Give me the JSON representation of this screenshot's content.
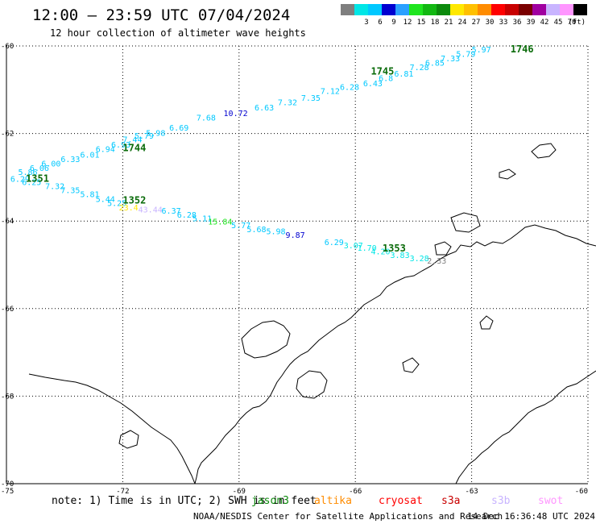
{
  "header": {
    "title": "12:00 — 23:59 UTC 07/04/2024",
    "subtitle": "12 hour collection of altimeter wave heights"
  },
  "legend": {
    "unit": "(ft)",
    "bins": [
      {
        "label": "",
        "color": "#7f7f7f"
      },
      {
        "label": "3",
        "color": "#00e6e6"
      },
      {
        "label": "6",
        "color": "#00c8ff"
      },
      {
        "label": "9",
        "color": "#0000d0"
      },
      {
        "label": "12",
        "color": "#2aa0ff"
      },
      {
        "label": "15",
        "color": "#1fe51f"
      },
      {
        "label": "18",
        "color": "#12b812"
      },
      {
        "label": "21",
        "color": "#0c8a0c"
      },
      {
        "label": "24",
        "color": "#ffe800"
      },
      {
        "label": "27",
        "color": "#ffc000"
      },
      {
        "label": "30",
        "color": "#ff8c00"
      },
      {
        "label": "33",
        "color": "#ff0000"
      },
      {
        "label": "36",
        "color": "#c80000"
      },
      {
        "label": "39",
        "color": "#7a0000"
      },
      {
        "label": "42",
        "color": "#a000a0"
      },
      {
        "label": "45",
        "color": "#c8b4ff"
      },
      {
        "label": "70",
        "color": "#ff96ff"
      },
      {
        "label": "",
        "color": "#000000"
      }
    ]
  },
  "map": {
    "lat_labels": [
      "-60",
      "-62",
      "-64",
      "-66",
      "-68",
      "-70"
    ],
    "lon_labels": [
      "-75",
      "-72",
      "-69",
      "-66",
      "-63",
      "-60"
    ],
    "lon_range": [
      -75,
      -60
    ],
    "lat_range": [
      -60,
      -70
    ],
    "passes": [
      {
        "label": "1746",
        "lon": -62.0,
        "lat": -60.15
      },
      {
        "label": "1745",
        "lon": -65.6,
        "lat": -60.65
      },
      {
        "label": "1744",
        "lon": -72.0,
        "lat": -62.4
      },
      {
        "label": "1351",
        "lon": -74.5,
        "lat": -63.1
      },
      {
        "label": "1352",
        "lon": -72.0,
        "lat": -63.6
      },
      {
        "label": "1353",
        "lon": -65.3,
        "lat": -64.7
      }
    ],
    "observations": [
      {
        "text": "5.97",
        "lon": -63.0,
        "lat": -60.15,
        "color": "#00c8ff"
      },
      {
        "text": "5.79",
        "lon": -63.4,
        "lat": -60.25,
        "color": "#00c8ff"
      },
      {
        "text": "7.33",
        "lon": -63.8,
        "lat": -60.35,
        "color": "#00c8ff"
      },
      {
        "text": "6.85",
        "lon": -64.2,
        "lat": -60.45,
        "color": "#00c8ff"
      },
      {
        "text": "7.28",
        "lon": -64.6,
        "lat": -60.55,
        "color": "#00c8ff"
      },
      {
        "text": "6.81",
        "lon": -65.0,
        "lat": -60.7,
        "color": "#00c8ff"
      },
      {
        "text": "6.8",
        "lon": -65.4,
        "lat": -60.8,
        "color": "#00c8ff"
      },
      {
        "text": "6.43",
        "lon": -65.8,
        "lat": -60.92,
        "color": "#00c8ff"
      },
      {
        "text": "6.28",
        "lon": -66.4,
        "lat": -61.0,
        "color": "#00c8ff"
      },
      {
        "text": "7.12",
        "lon": -66.9,
        "lat": -61.1,
        "color": "#00c8ff"
      },
      {
        "text": "7.35",
        "lon": -67.4,
        "lat": -61.25,
        "color": "#00c8ff"
      },
      {
        "text": "7.32",
        "lon": -68.0,
        "lat": -61.35,
        "color": "#00c8ff"
      },
      {
        "text": "6.63",
        "lon": -68.6,
        "lat": -61.47,
        "color": "#00c8ff"
      },
      {
        "text": "10.72",
        "lon": -69.4,
        "lat": -61.6,
        "color": "#0000d0"
      },
      {
        "text": "7.68",
        "lon": -70.1,
        "lat": -61.7,
        "color": "#00c8ff"
      },
      {
        "text": "6.69",
        "lon": -70.8,
        "lat": -61.93,
        "color": "#00c8ff"
      },
      {
        "text": "5.98",
        "lon": -71.4,
        "lat": -62.05,
        "color": "#00c8ff"
      },
      {
        "text": "5.79",
        "lon": -71.7,
        "lat": -62.12,
        "color": "#00c8ff"
      },
      {
        "text": "7.44",
        "lon": -72.0,
        "lat": -62.2,
        "color": "#00c8ff"
      },
      {
        "text": "6.93",
        "lon": -72.3,
        "lat": -62.32,
        "color": "#00c8ff"
      },
      {
        "text": "6.94",
        "lon": -72.7,
        "lat": -62.42,
        "color": "#00c8ff"
      },
      {
        "text": "6.01",
        "lon": -73.1,
        "lat": -62.55,
        "color": "#00c8ff"
      },
      {
        "text": "6.33",
        "lon": -73.6,
        "lat": -62.65,
        "color": "#00c8ff"
      },
      {
        "text": "6.00",
        "lon": -74.1,
        "lat": -62.75,
        "color": "#00c8ff"
      },
      {
        "text": "6.06",
        "lon": -74.4,
        "lat": -62.85,
        "color": "#00c8ff"
      },
      {
        "text": "5.86",
        "lon": -74.7,
        "lat": -62.95,
        "color": "#00c8ff"
      },
      {
        "text": "6.29",
        "lon": -74.9,
        "lat": -63.1,
        "color": "#00c8ff"
      },
      {
        "text": "6.25",
        "lon": -74.6,
        "lat": -63.18,
        "color": "#00c8ff"
      },
      {
        "text": "7.32",
        "lon": -74.0,
        "lat": -63.27,
        "color": "#00c8ff"
      },
      {
        "text": "7.35",
        "lon": -73.6,
        "lat": -63.36,
        "color": "#00c8ff"
      },
      {
        "text": "5.81",
        "lon": -73.1,
        "lat": -63.45,
        "color": "#00c8ff"
      },
      {
        "text": "5.44",
        "lon": -72.7,
        "lat": -63.56,
        "color": "#00c8ff"
      },
      {
        "text": "5.25",
        "lon": -72.4,
        "lat": -63.66,
        "color": "#00c8ff"
      },
      {
        "text": "23.4",
        "lon": -72.1,
        "lat": -63.76,
        "color": "#ffe800"
      },
      {
        "text": "43.44",
        "lon": -71.6,
        "lat": -63.8,
        "color": "#c8b4ff"
      },
      {
        "text": "6.37",
        "lon": -71.0,
        "lat": -63.83,
        "color": "#00c8ff"
      },
      {
        "text": "6.28",
        "lon": -70.6,
        "lat": -63.92,
        "color": "#00c8ff"
      },
      {
        "text": "5.11",
        "lon": -70.2,
        "lat": -64.01,
        "color": "#00c8ff"
      },
      {
        "text": "15.84",
        "lon": -69.8,
        "lat": -64.08,
        "color": "#1fe51f"
      },
      {
        "text": "5.77",
        "lon": -69.2,
        "lat": -64.16,
        "color": "#00c8ff"
      },
      {
        "text": "5.68",
        "lon": -68.8,
        "lat": -64.25,
        "color": "#00c8ff"
      },
      {
        "text": "5.98",
        "lon": -68.3,
        "lat": -64.3,
        "color": "#00c8ff"
      },
      {
        "text": "9.87",
        "lon": -67.8,
        "lat": -64.38,
        "color": "#0000d0"
      },
      {
        "text": "6.29",
        "lon": -66.8,
        "lat": -64.55,
        "color": "#00c8ff"
      },
      {
        "text": "3.07",
        "lon": -66.3,
        "lat": -64.62,
        "color": "#00e6e6"
      },
      {
        "text": "1.70",
        "lon": -65.95,
        "lat": -64.68,
        "color": "#00e6e6"
      },
      {
        "text": "4.20",
        "lon": -65.6,
        "lat": -64.76,
        "color": "#00e6e6"
      },
      {
        "text": "3.83",
        "lon": -65.1,
        "lat": -64.84,
        "color": "#00e6e6"
      },
      {
        "text": "3.28",
        "lon": -64.6,
        "lat": -64.92,
        "color": "#00e6e6"
      },
      {
        "text": "2.33",
        "lon": -64.15,
        "lat": -64.97,
        "color": "#7f7f7f"
      }
    ]
  },
  "footer": {
    "note": "note: 1) Time is in UTC; 2) SWH is in feet",
    "satellites": [
      {
        "name": "jason3",
        "color": "#0c8a0c"
      },
      {
        "name": "altika",
        "color": "#ff8c00"
      },
      {
        "name": "cryosat",
        "color": "#ff0000"
      },
      {
        "name": "s3a",
        "color": "#c80000"
      },
      {
        "name": "s3b",
        "color": "#c8b4ff"
      },
      {
        "name": "swot",
        "color": "#ff96ff"
      }
    ],
    "credit": "NOAA/NESDIS Center for Satellite Applications and Research",
    "timestamp": "14 Dec 16:36:48 UTC 2024"
  }
}
